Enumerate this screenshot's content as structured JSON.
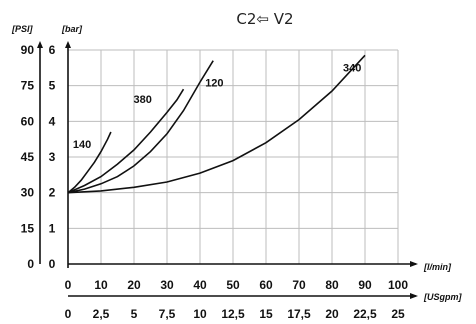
{
  "chart_data": {
    "type": "line",
    "title": "C2⇦ V2",
    "x_unit_primary": "[l/min]",
    "x_unit_secondary": "[USgpm]",
    "y_unit_left": "[PSI]",
    "y_unit_right": "[bar]",
    "x_ticks": [
      "0",
      "10",
      "20",
      "30",
      "40",
      "50",
      "60",
      "70",
      "80",
      "90",
      "100"
    ],
    "x_secondary_ticks": [
      "0",
      "2,5",
      "5",
      "7,5",
      "10",
      "12,5",
      "15",
      "17,5",
      "20",
      "22,5",
      "25"
    ],
    "y_left_ticks": [
      "0",
      "15",
      "30",
      "45",
      "60",
      "75",
      "90"
    ],
    "y_right_ticks": [
      "0",
      "1",
      "2",
      "3",
      "4",
      "5",
      "6"
    ],
    "xlim": [
      0,
      100
    ],
    "ylim": [
      0,
      6
    ],
    "grid": true,
    "series": [
      {
        "name": "140",
        "x": [
          0,
          2,
          4,
          6,
          8,
          10,
          12,
          13
        ],
        "y": [
          2.0,
          2.15,
          2.35,
          2.6,
          2.85,
          3.15,
          3.5,
          3.7
        ]
      },
      {
        "name": "380",
        "x": [
          0,
          5,
          10,
          15,
          20,
          25,
          30,
          33,
          35
        ],
        "y": [
          2.0,
          2.2,
          2.45,
          2.8,
          3.2,
          3.7,
          4.25,
          4.6,
          4.9
        ]
      },
      {
        "name": "120",
        "x": [
          0,
          5,
          10,
          15,
          20,
          25,
          30,
          35,
          40,
          44
        ],
        "y": [
          2.0,
          2.1,
          2.25,
          2.45,
          2.75,
          3.15,
          3.65,
          4.3,
          5.1,
          5.7
        ]
      },
      {
        "name": "340",
        "x": [
          0,
          10,
          20,
          30,
          40,
          50,
          60,
          70,
          80,
          90
        ],
        "y": [
          2.0,
          2.05,
          2.15,
          2.3,
          2.55,
          2.9,
          3.4,
          4.05,
          4.85,
          5.85
        ]
      }
    ]
  }
}
